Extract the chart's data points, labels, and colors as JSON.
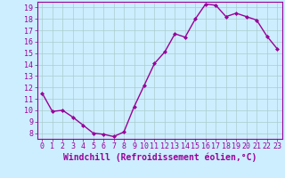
{
  "x": [
    0,
    1,
    2,
    3,
    4,
    5,
    6,
    7,
    8,
    9,
    10,
    11,
    12,
    13,
    14,
    15,
    16,
    17,
    18,
    19,
    20,
    21,
    22,
    23
  ],
  "y": [
    11.5,
    9.9,
    10.0,
    9.4,
    8.7,
    8.0,
    7.9,
    7.7,
    8.1,
    10.3,
    12.2,
    14.1,
    15.1,
    16.7,
    16.4,
    18.0,
    19.3,
    19.2,
    18.2,
    18.5,
    18.2,
    17.9,
    16.5,
    15.4
  ],
  "line_color": "#990099",
  "marker": "D",
  "marker_size": 2,
  "line_width": 1.0,
  "bg_color": "#cceeff",
  "grid_color": "#aacccc",
  "xlabel": "Windchill (Refroidissement éolien,°C)",
  "xlabel_color": "#990099",
  "tick_color": "#990099",
  "ylim": [
    7.5,
    19.5
  ],
  "yticks": [
    8,
    9,
    10,
    11,
    12,
    13,
    14,
    15,
    16,
    17,
    18,
    19
  ],
  "xticks": [
    0,
    1,
    2,
    3,
    4,
    5,
    6,
    7,
    8,
    9,
    10,
    11,
    12,
    13,
    14,
    15,
    16,
    17,
    18,
    19,
    20,
    21,
    22,
    23
  ],
  "tick_fontsize": 6,
  "xlabel_fontsize": 7
}
